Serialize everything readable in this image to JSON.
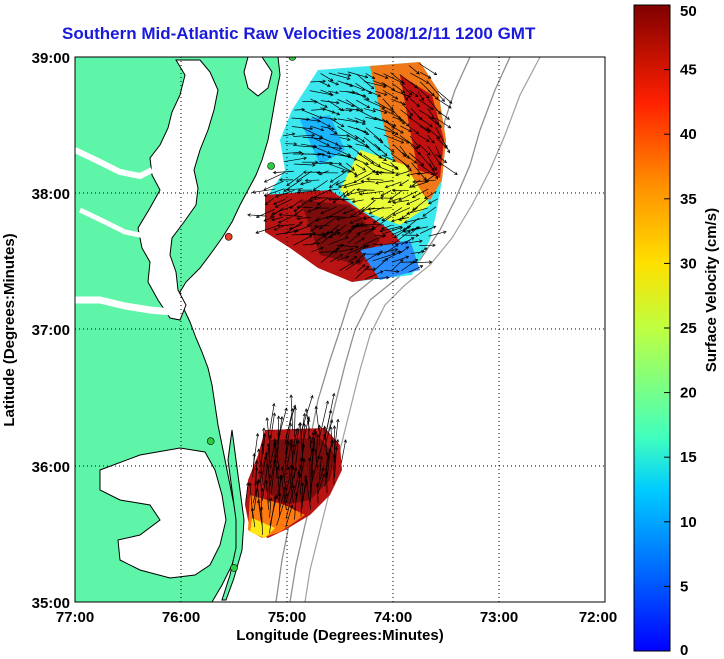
{
  "title": "Southern Mid-Atlantic Raw Velocities 2008/12/11 1200 GMT",
  "map": {
    "xlabel": "Longitude (Degrees:Minutes)",
    "ylabel": "Latitude (Degrees:Minutes)",
    "lon_range": [
      -77,
      -72
    ],
    "lat_range": [
      35,
      39
    ],
    "x_ticks": [
      "77:00",
      "76:00",
      "75:00",
      "74:00",
      "73:00",
      "72:00"
    ],
    "y_ticks": [
      "39:00",
      "38:00",
      "37:00",
      "36:00",
      "35:00"
    ],
    "land_color": "#5ef5a8",
    "coast_color": "#000000",
    "bathymetry_color": "#909090",
    "grid": "dotted",
    "stations": [
      {
        "lon": -74.95,
        "lat": 39.0,
        "color": "#2ecc40"
      },
      {
        "lon": -75.15,
        "lat": 38.2,
        "color": "#2ecc40"
      },
      {
        "lon": -75.55,
        "lat": 37.68,
        "color": "#e8402a"
      },
      {
        "lon": -75.72,
        "lat": 36.18,
        "color": "#2ecc40"
      },
      {
        "lon": -75.5,
        "lat": 35.25,
        "color": "#2ecc40"
      }
    ]
  },
  "colorbar": {
    "label": "Surface Velocity (cm/s)",
    "min": 0,
    "max": 50,
    "ticks": [
      "0",
      "5",
      "10",
      "15",
      "20",
      "25",
      "30",
      "35",
      "40",
      "45",
      "50"
    ]
  }
}
